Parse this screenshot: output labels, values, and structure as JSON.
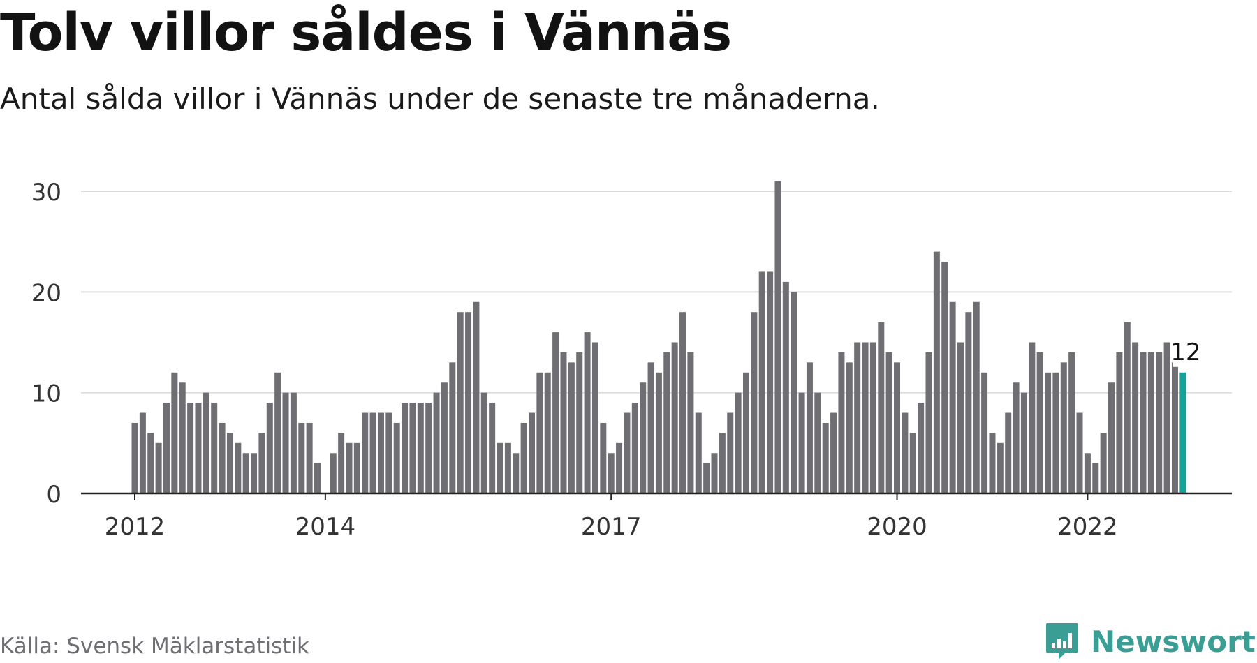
{
  "header": {
    "title": "Tolv villor såldes i Vännäs",
    "subtitle": "Antal sålda villor i Vännäs under de senaste tre månaderna."
  },
  "footer": {
    "source": "Källa: Svensk Mäklarstatistik",
    "brand": "Newsworthy",
    "brand_icon": "bar-chart-speech-bubble-icon"
  },
  "colors": {
    "bar": "#6e6e73",
    "highlight": "#14a39a",
    "grid": "#dcdcdc",
    "axis": "#222222",
    "brand": "#3a9e95"
  },
  "chart_data": {
    "type": "bar",
    "start_month": "2012-01",
    "values": [
      7,
      8,
      6,
      5,
      9,
      12,
      11,
      9,
      9,
      10,
      9,
      7,
      6,
      5,
      4,
      4,
      6,
      9,
      12,
      10,
      10,
      7,
      7,
      3,
      0,
      4,
      6,
      5,
      5,
      8,
      8,
      8,
      8,
      7,
      9,
      9,
      9,
      9,
      10,
      11,
      13,
      18,
      18,
      19,
      10,
      9,
      5,
      5,
      4,
      7,
      8,
      12,
      12,
      16,
      14,
      13,
      14,
      16,
      15,
      7,
      4,
      5,
      8,
      9,
      11,
      13,
      12,
      14,
      15,
      18,
      14,
      8,
      3,
      4,
      6,
      8,
      10,
      12,
      18,
      22,
      22,
      31,
      21,
      20,
      10,
      13,
      10,
      7,
      8,
      14,
      13,
      15,
      15,
      15,
      17,
      14,
      13,
      8,
      6,
      9,
      14,
      24,
      23,
      19,
      15,
      18,
      19,
      12,
      6,
      5,
      8,
      11,
      10,
      15,
      14,
      12,
      12,
      13,
      14,
      8,
      4,
      3,
      6,
      11,
      14,
      17,
      15,
      14,
      14,
      14,
      15,
      13,
      12
    ],
    "highlight_index": 132,
    "highlight_label": "12",
    "x_ticks": [
      {
        "label": "2012",
        "index": 0
      },
      {
        "label": "2014",
        "index": 24
      },
      {
        "label": "2017",
        "index": 60
      },
      {
        "label": "2020",
        "index": 96
      },
      {
        "label": "2022",
        "index": 120
      }
    ],
    "y_ticks": [
      0,
      10,
      20,
      30
    ],
    "ylim": [
      0,
      31
    ],
    "xlabel": "",
    "ylabel": "",
    "grid": true
  }
}
